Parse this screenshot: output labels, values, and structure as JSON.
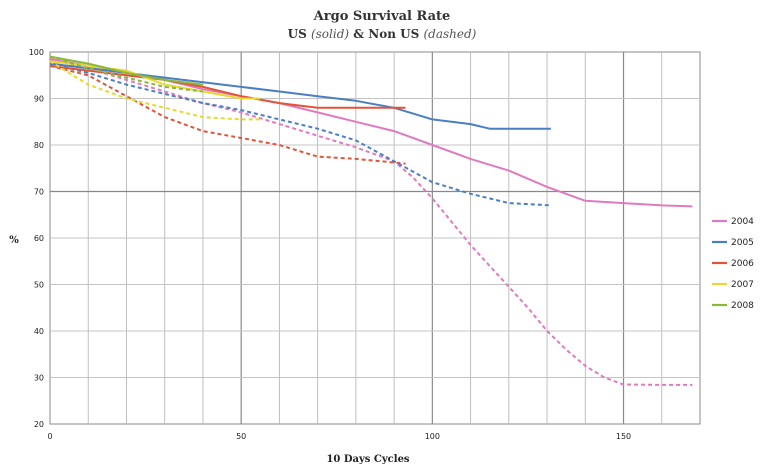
{
  "chart_data": {
    "type": "line",
    "title": "Argo Survival Rate",
    "subtitle": {
      "part1": "US ",
      "part2": "(solid)",
      "part3": " & Non US ",
      "part4": "(dashed)"
    },
    "xlabel": "10 Days Cycles",
    "ylabel": "%",
    "xlim": [
      0,
      170
    ],
    "ylim": [
      20,
      100
    ],
    "xticks": [
      0,
      50,
      100,
      150
    ],
    "yticks": [
      20,
      30,
      40,
      50,
      60,
      70,
      80,
      90,
      100
    ],
    "grid": true,
    "legend_position": "right",
    "series": [
      {
        "name": "2004",
        "style": "solid",
        "color": "#e07ac0",
        "x": [
          0,
          10,
          20,
          30,
          40,
          50,
          60,
          70,
          80,
          90,
          100,
          110,
          120,
          130,
          140,
          150,
          160,
          168
        ],
        "y": [
          98.5,
          97,
          95.5,
          94,
          92,
          90.5,
          89,
          87,
          85,
          83,
          80,
          77,
          74.5,
          71,
          68,
          67.5,
          67,
          66.8
        ]
      },
      {
        "name": "2004",
        "style": "dashed",
        "color": "#e07ac0",
        "x": [
          0,
          10,
          20,
          30,
          40,
          50,
          60,
          70,
          80,
          90,
          95,
          100,
          105,
          110,
          115,
          120,
          125,
          130,
          135,
          140,
          145,
          150,
          160,
          168
        ],
        "y": [
          98.5,
          96.5,
          94,
          91.5,
          89,
          87,
          84.5,
          82,
          79.5,
          76.5,
          73,
          68.5,
          63.5,
          58.5,
          54,
          49.5,
          45,
          40,
          36,
          32.5,
          30,
          28.5,
          28.4,
          28.4
        ]
      },
      {
        "name": "2005",
        "style": "solid",
        "color": "#4a7fc4",
        "x": [
          0,
          10,
          20,
          30,
          40,
          50,
          60,
          70,
          80,
          90,
          100,
          110,
          115,
          120,
          131
        ],
        "y": [
          97.5,
          96.5,
          95.5,
          94.5,
          93.5,
          92.5,
          91.5,
          90.5,
          89.5,
          88,
          85.5,
          84.5,
          83.5,
          83.5,
          83.5
        ]
      },
      {
        "name": "2005",
        "style": "dashed",
        "color": "#4a7fc4",
        "x": [
          0,
          10,
          20,
          30,
          40,
          50,
          60,
          70,
          80,
          90,
          100,
          110,
          120,
          131
        ],
        "y": [
          97.5,
          95.5,
          93,
          91,
          89,
          87.5,
          85.5,
          83.5,
          81,
          76.5,
          72,
          69.5,
          67.5,
          67
        ]
      },
      {
        "name": "2006",
        "style": "solid",
        "color": "#e0553a",
        "x": [
          0,
          10,
          20,
          30,
          40,
          50,
          60,
          70,
          80,
          93
        ],
        "y": [
          97,
          96,
          95,
          94,
          92.5,
          90.5,
          89,
          88,
          88,
          88
        ]
      },
      {
        "name": "2006",
        "style": "dashed",
        "color": "#e0553a",
        "x": [
          0,
          10,
          20,
          30,
          40,
          50,
          60,
          70,
          80,
          93
        ],
        "y": [
          97,
          95,
          90.5,
          86,
          83,
          81.5,
          80,
          77.5,
          77,
          76
        ]
      },
      {
        "name": "2007",
        "style": "solid",
        "color": "#e8d830",
        "x": [
          0,
          10,
          20,
          30,
          40,
          50,
          55
        ],
        "y": [
          98,
          97,
          96,
          93,
          91.5,
          90,
          90
        ]
      },
      {
        "name": "2007",
        "style": "dashed",
        "color": "#e8d830",
        "x": [
          0,
          10,
          20,
          30,
          40,
          50,
          55
        ],
        "y": [
          98,
          93,
          90,
          88,
          86,
          85.5,
          85.5
        ]
      },
      {
        "name": "2008",
        "style": "solid",
        "color": "#8ab83a",
        "x": [
          0,
          10,
          20,
          30,
          40
        ],
        "y": [
          99,
          97.5,
          95.5,
          94,
          93
        ]
      },
      {
        "name": "2008",
        "style": "dashed",
        "color": "#8ab83a",
        "x": [
          0,
          10,
          20,
          30,
          40
        ],
        "y": [
          99,
          96.5,
          94.5,
          92.5,
          91.5
        ]
      }
    ],
    "legend": [
      {
        "name": "2004",
        "color": "#e07ac0"
      },
      {
        "name": "2005",
        "color": "#4a7fc4"
      },
      {
        "name": "2006",
        "color": "#e0553a"
      },
      {
        "name": "2007",
        "color": "#e8d830"
      },
      {
        "name": "2008",
        "color": "#8ab83a"
      }
    ]
  }
}
